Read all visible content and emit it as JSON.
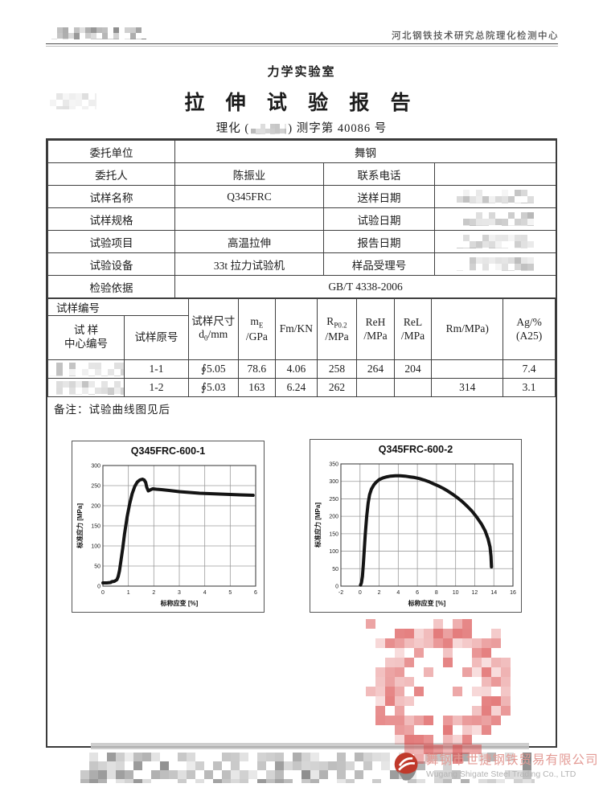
{
  "colors": {
    "ink": "#1c1c1c",
    "table_line": "#3f3f3f",
    "stamp_red": "#d84f4f",
    "logo_red": "#c0392b",
    "logo_gray": "#8d8d8d",
    "watermark_cn_color": "#e39a94",
    "watermark_en_color": "#b3b3b3"
  },
  "header": {
    "org_right": "河北钢铁技术研究总院理化检测中心",
    "lab": "力学实验室",
    "title": "拉 伸 试 验 报 告",
    "doc_no_prefix": "理化 (",
    "doc_no_suffix": ") 测字第 40086 号"
  },
  "info_table": {
    "rows": [
      {
        "label": "委托单位",
        "value": "舞钢"
      },
      {
        "label": "委托人",
        "value": "陈振业",
        "label2": "联系电话",
        "value2": ""
      },
      {
        "label": "试样名称",
        "value": "Q345FRC",
        "label2": "送样日期"
      },
      {
        "label": "试样规格",
        "value": "",
        "label2": "试验日期"
      },
      {
        "label": "试验项目",
        "value": "高温拉伸",
        "label2": "报告日期"
      },
      {
        "label": "试验设备",
        "value": "33t 拉力试验机",
        "label2": "样品受理号"
      },
      {
        "label": "检验依据",
        "value": "GB/T 4338-2006"
      }
    ]
  },
  "results": {
    "group_header": "试样编号",
    "headers": {
      "center_l1": "试    样",
      "center_l2": "中心编号",
      "orig": "试样原号",
      "size_l1": "试样尺寸",
      "size_d": "d",
      "size_sub": "0",
      "size_unit": "/mm",
      "me_m": "m",
      "me_sub": "E",
      "me_unit": "/GPa",
      "fm": "Fm/KN",
      "rp_r": "R",
      "rp_sub": "P0.2",
      "rp_unit": "/MPa",
      "reh": "ReH",
      "reh_unit": "/MPa",
      "rel": "ReL",
      "rel_unit": "/MPa",
      "rm": "Rm/MPa)",
      "ag_l1": "Ag/%",
      "ag_l2": "(A25)"
    },
    "rows": [
      {
        "orig": "1-1",
        "size": "∮5.05",
        "me": "78.6",
        "fm": "4.06",
        "rp": "258",
        "reh": "264",
        "rel": "204",
        "rm": "",
        "ag": "7.4"
      },
      {
        "orig": "1-2",
        "size": "∮5.03",
        "me": "163",
        "fm": "6.24",
        "rp": "262",
        "reh": "",
        "rel": "",
        "rm": "314",
        "ag": "3.1"
      }
    ],
    "note": "备注：试验曲线图见后"
  },
  "chart_data": [
    {
      "type": "line",
      "title": "Q345FRC-600-1",
      "xlabel": "标称应变 [%]",
      "ylabel": "标准应力 [MPa]",
      "xlim": [
        0,
        6
      ],
      "ylim": [
        0,
        300
      ],
      "xticks": [
        0,
        1,
        2,
        3,
        4,
        5,
        6
      ],
      "yticks": [
        0,
        50,
        100,
        150,
        200,
        250,
        300
      ],
      "grid": true,
      "legend": "none",
      "series": [
        {
          "name": "engineering stress-strain curve specimen 1-1",
          "x": [
            0,
            0.15,
            0.3,
            0.35,
            0.45,
            0.55,
            0.6,
            0.65,
            0.7,
            0.78,
            0.85,
            0.95,
            1.05,
            1.15,
            1.25,
            1.35,
            1.45,
            1.55,
            1.62,
            1.68,
            1.72,
            1.78,
            1.85,
            1.95,
            2.1,
            2.3,
            2.6,
            3.0,
            3.4,
            3.8,
            4.2,
            4.6,
            5.0,
            5.4,
            5.9
          ],
          "y": [
            8,
            8,
            9,
            11,
            12,
            16,
            24,
            38,
            60,
            95,
            130,
            172,
            205,
            230,
            248,
            259,
            264,
            266,
            264,
            258,
            246,
            237,
            239,
            242,
            241,
            240,
            238,
            235,
            233,
            231,
            230,
            229,
            228,
            227,
            226
          ]
        }
      ]
    },
    {
      "type": "line",
      "title": "Q345FRC-600-2",
      "xlabel": "标称应变 [%]",
      "ylabel": "标准应力 [MPa]",
      "xlim": [
        -2,
        16
      ],
      "ylim": [
        0,
        350
      ],
      "xticks": [
        -2,
        0,
        2,
        4,
        6,
        8,
        10,
        12,
        14,
        16
      ],
      "yticks": [
        0,
        50,
        100,
        150,
        200,
        250,
        300,
        350
      ],
      "grid": true,
      "legend": "none",
      "series": [
        {
          "name": "engineering stress-strain curve specimen 1-2",
          "x": [
            0.05,
            0.15,
            0.25,
            0.35,
            0.45,
            0.55,
            0.7,
            0.85,
            1.0,
            1.2,
            1.45,
            1.7,
            2.0,
            2.4,
            2.8,
            3.2,
            3.7,
            4.2,
            4.7,
            5.2,
            5.7,
            6.2,
            6.7,
            7.2,
            7.7,
            8.2,
            8.7,
            9.2,
            9.7,
            10.2,
            10.7,
            11.2,
            11.7,
            12.2,
            12.7,
            13.1,
            13.4,
            13.6,
            13.7,
            13.75
          ],
          "y": [
            3,
            10,
            28,
            62,
            105,
            148,
            200,
            238,
            262,
            278,
            290,
            298,
            305,
            310,
            313,
            315,
            316,
            316,
            315,
            313,
            311,
            308,
            304,
            299,
            293,
            287,
            280,
            272,
            263,
            253,
            242,
            229,
            215,
            198,
            178,
            158,
            135,
            112,
            85,
            55
          ]
        }
      ]
    }
  ],
  "footer": {
    "company_cn": "舞钢市世捷钢铁贸易有限公司",
    "company_en": "Wugang Shigate Steel Trading Co., LTD"
  }
}
